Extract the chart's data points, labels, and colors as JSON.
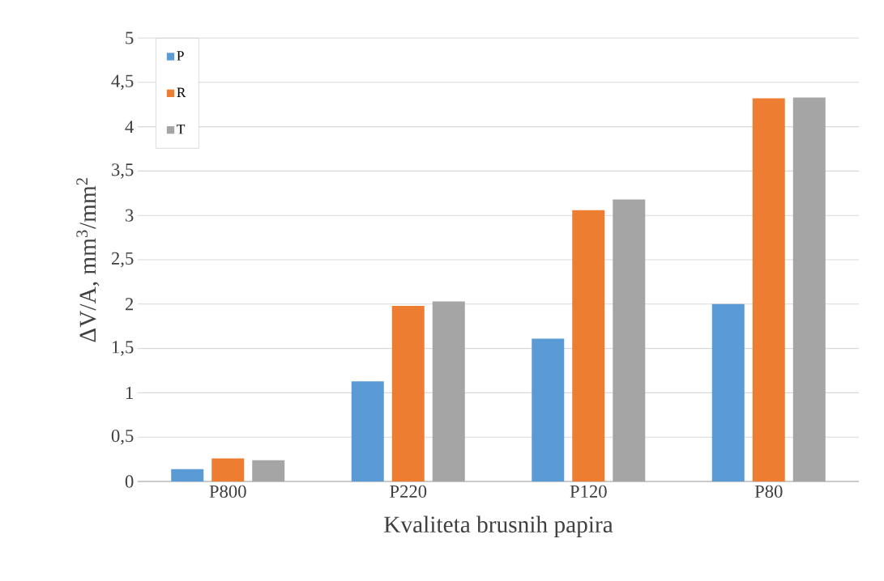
{
  "chart_data": {
    "type": "bar",
    "xlabel": "Kvaliteta brusnih papira",
    "ylabel": "ΔV/A, mm$^{3}$/mm$^{2}$",
    "categories": [
      "P800",
      "P220",
      "P120",
      "P80"
    ],
    "series": [
      {
        "name": "P",
        "color": "#5b9bd5",
        "values": [
          0.14,
          1.13,
          1.61,
          2.0
        ]
      },
      {
        "name": "R",
        "color": "#ed7d31",
        "values": [
          0.26,
          1.98,
          3.06,
          4.32
        ]
      },
      {
        "name": "T",
        "color": "#a5a5a5",
        "values": [
          0.24,
          2.03,
          3.18,
          4.33
        ]
      }
    ],
    "ylim": [
      0,
      5
    ],
    "yticks": [
      0,
      {
        "value": 0.5,
        "label": "0,5"
      },
      1,
      {
        "value": 1.5,
        "label": "1,5"
      },
      2,
      {
        "value": 2.5,
        "label": "2,5"
      },
      3,
      {
        "value": 3.5,
        "label": "3,5"
      },
      4,
      {
        "value": 4.5,
        "label": "4,5"
      },
      5
    ],
    "grid": "y",
    "legend": "top left"
  }
}
